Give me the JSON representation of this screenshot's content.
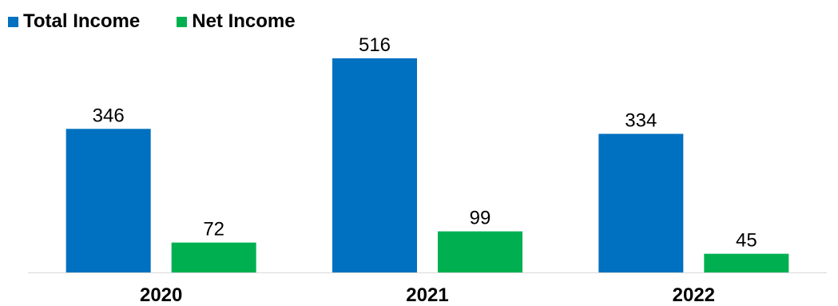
{
  "chart_data": {
    "type": "bar",
    "categories": [
      "2020",
      "2021",
      "2022"
    ],
    "series": [
      {
        "name": "Total Income",
        "values": [
          346,
          516,
          334
        ],
        "color": "#0070C0"
      },
      {
        "name": "Net Income",
        "values": [
          72,
          99,
          45
        ],
        "color": "#00B050"
      }
    ],
    "ylim": [
      0,
      516
    ],
    "grid": false,
    "legend_position": "top-left",
    "data_labels": true,
    "title": "",
    "xlabel": "",
    "ylabel": ""
  }
}
